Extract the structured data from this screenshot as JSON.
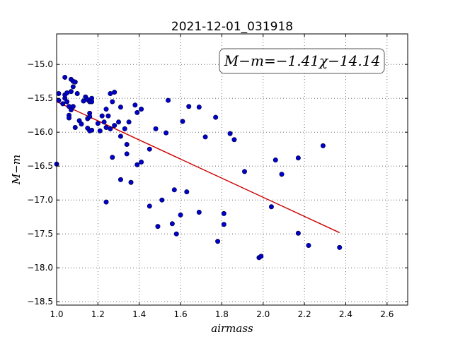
{
  "chart_data": {
    "type": "scatter",
    "title": "2021-12-01_031918",
    "xlabel": "airmass",
    "ylabel": "M−m",
    "xlim": [
      1.0,
      2.7
    ],
    "ylim": [
      -18.55,
      -14.55
    ],
    "xticks": [
      1.0,
      1.2,
      1.4,
      1.6,
      1.8,
      2.0,
      2.2,
      2.4,
      2.6
    ],
    "xtick_labels": [
      "1.0",
      "1.2",
      "1.4",
      "1.6",
      "1.8",
      "2.0",
      "2.2",
      "2.4",
      "2.6"
    ],
    "yticks": [
      -15.0,
      -15.5,
      -16.0,
      -16.5,
      -17.0,
      -17.5,
      -18.0,
      -18.5
    ],
    "ytick_labels": [
      "−15.0",
      "−15.5",
      "−16.0",
      "−16.5",
      "−17.0",
      "−17.5",
      "−18.0",
      "−18.5"
    ],
    "grid": true,
    "legend_text": "M−m=−1.41χ−14.14",
    "fit": {
      "slope": -1.41,
      "intercept": -14.14,
      "x": [
        1.0,
        2.37
      ]
    },
    "points": [
      [
        1.0,
        -16.47
      ],
      [
        1.01,
        -15.43
      ],
      [
        1.01,
        -15.53
      ],
      [
        1.03,
        -15.58
      ],
      [
        1.04,
        -15.19
      ],
      [
        1.04,
        -15.5
      ],
      [
        1.04,
        -15.45
      ],
      [
        1.05,
        -15.42
      ],
      [
        1.05,
        -15.55
      ],
      [
        1.06,
        -15.62
      ],
      [
        1.06,
        -15.75
      ],
      [
        1.06,
        -15.79
      ],
      [
        1.07,
        -15.4
      ],
      [
        1.07,
        -15.67
      ],
      [
        1.07,
        -15.22
      ],
      [
        1.08,
        -15.33
      ],
      [
        1.08,
        -15.62
      ],
      [
        1.08,
        -15.25
      ],
      [
        1.09,
        -15.26
      ],
      [
        1.09,
        -15.93
      ],
      [
        1.1,
        -15.43
      ],
      [
        1.11,
        -15.83
      ],
      [
        1.12,
        -15.88
      ],
      [
        1.13,
        -15.54
      ],
      [
        1.14,
        -15.48
      ],
      [
        1.15,
        -15.52
      ],
      [
        1.15,
        -15.94
      ],
      [
        1.15,
        -15.8
      ],
      [
        1.16,
        -15.55
      ],
      [
        1.16,
        -15.72
      ],
      [
        1.16,
        -15.77
      ],
      [
        1.16,
        -15.98
      ],
      [
        1.17,
        -15.5
      ],
      [
        1.17,
        -15.55
      ],
      [
        1.17,
        -15.97
      ],
      [
        1.2,
        -15.87
      ],
      [
        1.21,
        -15.98
      ],
      [
        1.22,
        -15.76
      ],
      [
        1.23,
        -15.85
      ],
      [
        1.24,
        -15.66
      ],
      [
        1.24,
        -15.93
      ],
      [
        1.24,
        -17.03
      ],
      [
        1.25,
        -15.76
      ],
      [
        1.26,
        -15.95
      ],
      [
        1.26,
        -15.43
      ],
      [
        1.27,
        -15.55
      ],
      [
        1.27,
        -16.37
      ],
      [
        1.28,
        -15.41
      ],
      [
        1.28,
        -15.9
      ],
      [
        1.3,
        -15.85
      ],
      [
        1.31,
        -15.63
      ],
      [
        1.31,
        -16.06
      ],
      [
        1.31,
        -16.7
      ],
      [
        1.33,
        -15.95
      ],
      [
        1.34,
        -16.18
      ],
      [
        1.34,
        -16.32
      ],
      [
        1.35,
        -15.85
      ],
      [
        1.36,
        -16.74
      ],
      [
        1.38,
        -15.6
      ],
      [
        1.39,
        -15.71
      ],
      [
        1.39,
        -16.48
      ],
      [
        1.41,
        -15.66
      ],
      [
        1.41,
        -16.44
      ],
      [
        1.45,
        -16.25
      ],
      [
        1.45,
        -17.09
      ],
      [
        1.48,
        -15.95
      ],
      [
        1.49,
        -17.39
      ],
      [
        1.51,
        -17.0
      ],
      [
        1.53,
        -16.01
      ],
      [
        1.54,
        -15.53
      ],
      [
        1.56,
        -17.35
      ],
      [
        1.57,
        -16.85
      ],
      [
        1.58,
        -17.5
      ],
      [
        1.6,
        -17.22
      ],
      [
        1.61,
        -15.84
      ],
      [
        1.63,
        -16.88
      ],
      [
        1.64,
        -15.62
      ],
      [
        1.69,
        -15.63
      ],
      [
        1.69,
        -17.18
      ],
      [
        1.72,
        -16.07
      ],
      [
        1.77,
        -15.78
      ],
      [
        1.78,
        -17.61
      ],
      [
        1.81,
        -17.36
      ],
      [
        1.81,
        -17.2
      ],
      [
        1.84,
        -16.02
      ],
      [
        1.86,
        -16.11
      ],
      [
        1.91,
        -16.58
      ],
      [
        1.98,
        -17.85
      ],
      [
        1.99,
        -17.83
      ],
      [
        2.04,
        -17.1
      ],
      [
        2.06,
        -16.41
      ],
      [
        2.09,
        -16.62
      ],
      [
        2.17,
        -16.38
      ],
      [
        2.17,
        -17.49
      ],
      [
        2.22,
        -17.67
      ],
      [
        2.29,
        -16.2
      ],
      [
        2.37,
        -17.7
      ]
    ]
  }
}
